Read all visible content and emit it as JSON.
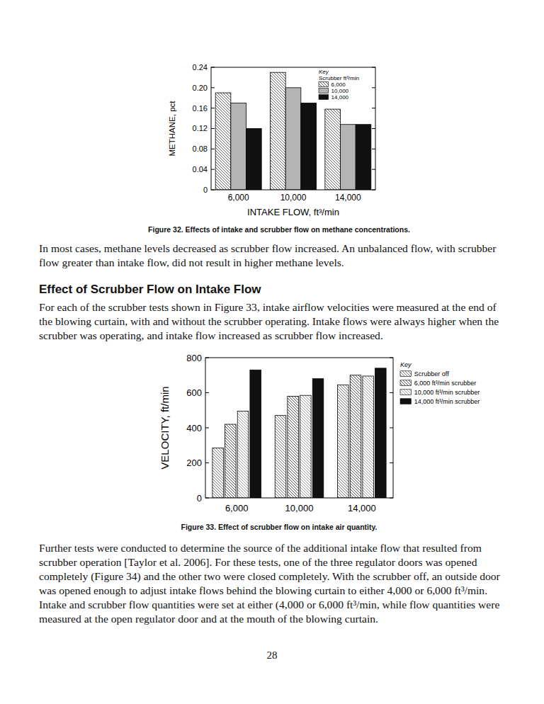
{
  "chart_data": [
    {
      "type": "bar",
      "xlabel": "INTAKE FLOW, ft³/min",
      "ylabel": "METHANE, pct",
      "categories": [
        "6,000",
        "10,000",
        "14,000"
      ],
      "series": [
        {
          "name": "6,000",
          "color": "#333333",
          "line_style": "hatched",
          "values": [
            0.19,
            0.23,
            0.158
          ]
        },
        {
          "name": "10,000",
          "color": "#b4b4b4",
          "line_style": "solid",
          "values": [
            0.17,
            0.2,
            0.128
          ]
        },
        {
          "name": "14,000",
          "color": "#111111",
          "line_style": "solid",
          "values": [
            0.12,
            0.17,
            0.128
          ]
        }
      ],
      "annotations": [
        "Key",
        "Scrubber ft³/min"
      ],
      "legend": "upper right",
      "ylim": [
        0,
        0.24
      ],
      "yticks": [
        0,
        0.04,
        0.08,
        0.12,
        0.16,
        {
          "value": 0.2,
          "label": "0.20"
        },
        0.24
      ],
      "grid": false
    },
    {
      "type": "bar",
      "ylabel": "VELOCITY, ft/min",
      "categories": [
        "6,000",
        "10,000",
        "14,000"
      ],
      "series": [
        {
          "name": "Scrubber off",
          "color": "#555555",
          "line_style": "hatched",
          "values": [
            285,
            470,
            645
          ]
        },
        {
          "name": "6,000 ft³/min scrubber",
          "color": "#222222",
          "line_style": "hatched",
          "values": [
            420,
            580,
            700
          ]
        },
        {
          "name": "10,000 ft³/min scrubber",
          "color": "#888888",
          "line_style": "hatched",
          "values": [
            495,
            585,
            695
          ]
        },
        {
          "name": "14,000 ft³/min scrubber",
          "color": "#111111",
          "line_style": "solid",
          "values": [
            730,
            680,
            740
          ]
        }
      ],
      "annotations": [
        "Key"
      ],
      "legend": "right",
      "ylim": [
        0,
        800
      ],
      "yticks": [
        0,
        200,
        400,
        600,
        800
      ],
      "grid": false
    }
  ],
  "page": {
    "captions": [
      "Figure 32. Effects of intake and scrubber flow on methane concentrations.",
      "Figure 33. Effect of scrubber flow on intake air quantity."
    ],
    "heading": "Effect of Scrubber Flow on Intake Flow",
    "paragraphs": [
      "In most cases, methane levels decreased as scrubber flow increased. An unbalanced flow, with scrubber flow greater than intake flow, did not result in higher methane levels.",
      "For each of the scrubber tests shown in Figure 33, intake airflow velocities were measured at the end of the blowing curtain, with and without the scrubber operating. Intake flows were always higher when the scrubber was operating, and intake flow increased as scrubber flow increased.",
      "Further tests were conducted to determine the source of the additional intake flow that resulted from scrubber operation [Taylor et al. 2006]. For these tests, one of the three regulator doors was opened completely (Figure 34) and the other two were closed completely. With the scrubber off, an outside door was opened enough to adjust intake flows behind the blowing curtain to either 4,000 or 6,000 ft³/min. Intake and scrubber flow quantities were set at either (4,000 or 6,000 ft³/min, while flow quantities were measured at the open regulator door and at the mouth of the blowing curtain."
    ],
    "page_number": "28"
  }
}
